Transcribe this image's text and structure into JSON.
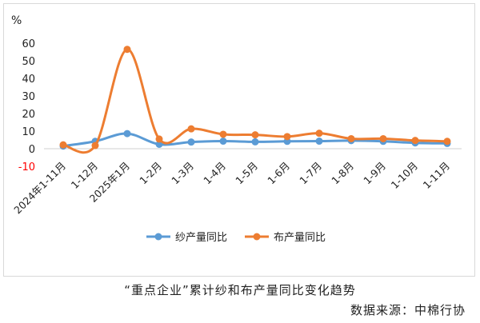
{
  "chart_data": {
    "type": "line",
    "unit_label": "%",
    "categories": [
      "2024年1-11月",
      "1-12月",
      "2025年1月",
      "1-2月",
      "1-3月",
      "1-4月",
      "1-5月",
      "1-6月",
      "1-7月",
      "1-8月",
      "1-9月",
      "1-10月",
      "1-11月"
    ],
    "series": [
      {
        "name": "纱产量同比",
        "color": "#5B9BD5",
        "values": [
          1.5,
          4.2,
          8.6,
          2.5,
          3.8,
          4.3,
          3.9,
          4.2,
          4.3,
          4.6,
          4.2,
          3.3,
          3.0
        ]
      },
      {
        "name": "布产量同比",
        "color": "#ED7D31",
        "values": [
          2.2,
          1.8,
          56.5,
          5.5,
          11.3,
          8.2,
          7.9,
          6.9,
          8.8,
          5.7,
          5.7,
          4.7,
          4.2
        ]
      }
    ],
    "yticks": [
      -10,
      0,
      10,
      20,
      30,
      40,
      50,
      60
    ],
    "ylim": [
      -10,
      60
    ],
    "negative_tick_color": "#FF0000",
    "grid": false,
    "legend_position": "bottom"
  },
  "caption": "“重点企业”累计纱和布产量同比变化趋势",
  "source": "数据来源：中棉行协"
}
